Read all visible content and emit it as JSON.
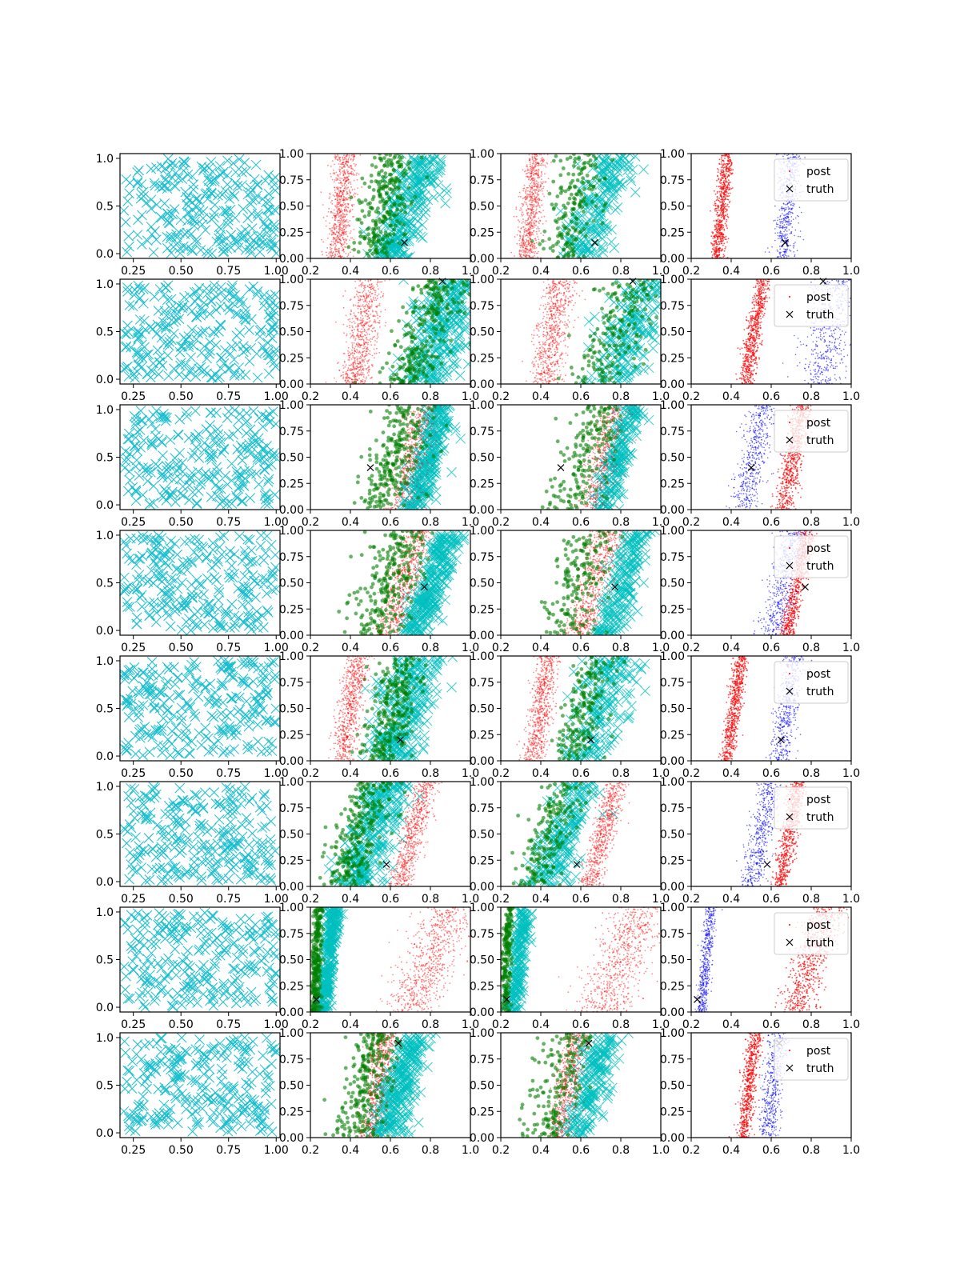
{
  "figure": {
    "colors": {
      "prior": "#17becf",
      "samples_red": "#ff0000",
      "samples_green": "#008000",
      "samples_cyan": "#00bfbf",
      "post_other": "#0000ff",
      "truth": "#000000"
    }
  },
  "legend": {
    "post_label": "post",
    "truth_label": "truth"
  },
  "chart_data": {
    "type": "scatter",
    "grid": false,
    "legend_location": "upper right of fourth column panels",
    "layout": "8 rows x 4 columns",
    "column1": {
      "xlim": [
        0.18,
        1.02
      ],
      "ylim": [
        -0.05,
        1.05
      ],
      "xticks": [
        0.25,
        0.5,
        0.75,
        1.0
      ],
      "xtick_labels": [
        "0.25",
        "0.50",
        "0.75",
        "1.00"
      ],
      "yticks": [
        0.0,
        0.5,
        1.0
      ],
      "ytick_labels": [
        "0.0",
        "0.5",
        "1.0"
      ]
    },
    "columns2to4": {
      "xlim": [
        0.2,
        1.0
      ],
      "ylim": [
        0.0,
        1.0
      ],
      "xticks": [
        0.2,
        0.4,
        0.6,
        0.8,
        1.0
      ],
      "xtick_labels": [
        "0.2",
        "0.4",
        "0.6",
        "0.8",
        "1.0"
      ],
      "yticks": [
        0.0,
        0.25,
        0.5,
        0.75,
        1.0
      ],
      "ytick_labels": [
        "0.00",
        "0.25",
        "0.50",
        "0.75",
        "1.00"
      ]
    },
    "rows": [
      {
        "truth": [
          0.67,
          0.15
        ],
        "red_band": [
          0.33,
          0.38,
          0.05
        ],
        "green_band": [
          0.52,
          0.62,
          0.1
        ],
        "cyan_band": [
          0.6,
          0.78,
          0.1
        ],
        "post_red": [
          0.33,
          0.38,
          0.03
        ],
        "post_other": [
          0.66,
          0.7,
          0.05
        ],
        "post_other_color": "blue"
      },
      {
        "truth": [
          0.86,
          0.98
        ],
        "red_band": [
          0.42,
          0.5,
          0.07
        ],
        "green_band": [
          0.68,
          0.88,
          0.12
        ],
        "cyan_band": [
          0.78,
          0.92,
          0.12
        ],
        "post_red": [
          0.47,
          0.56,
          0.035
        ],
        "post_other": [
          0.85,
          0.92,
          0.1
        ],
        "post_other_color": "blue"
      },
      {
        "truth": [
          0.5,
          0.4
        ],
        "red_band": [
          0.66,
          0.78,
          0.07
        ],
        "green_band": [
          0.55,
          0.7,
          0.11
        ],
        "cyan_band": [
          0.72,
          0.86,
          0.06
        ],
        "post_red": [
          0.66,
          0.76,
          0.045
        ],
        "post_other": [
          0.46,
          0.56,
          0.06
        ],
        "post_other_color": "blue"
      },
      {
        "truth": [
          0.77,
          0.46
        ],
        "red_band": [
          0.6,
          0.74,
          0.07
        ],
        "green_band": [
          0.52,
          0.66,
          0.12
        ],
        "cyan_band": [
          0.72,
          0.9,
          0.07
        ],
        "post_red": [
          0.68,
          0.78,
          0.035
        ],
        "post_other": [
          0.6,
          0.72,
          0.06
        ],
        "post_other_color": "blue"
      },
      {
        "truth": [
          0.65,
          0.2
        ],
        "red_band": [
          0.36,
          0.44,
          0.05
        ],
        "green_band": [
          0.55,
          0.68,
          0.1
        ],
        "cyan_band": [
          0.62,
          0.76,
          0.12
        ],
        "post_red": [
          0.38,
          0.45,
          0.03
        ],
        "post_other": [
          0.64,
          0.72,
          0.05
        ],
        "post_other_color": "blue"
      },
      {
        "truth": [
          0.58,
          0.21
        ],
        "red_band": [
          0.64,
          0.78,
          0.05
        ],
        "green_band": [
          0.36,
          0.52,
          0.1
        ],
        "cyan_band": [
          0.42,
          0.6,
          0.1
        ],
        "post_red": [
          0.64,
          0.74,
          0.035
        ],
        "post_other": [
          0.5,
          0.6,
          0.05
        ],
        "post_other_color": "blue"
      },
      {
        "truth": [
          0.23,
          0.12
        ],
        "red_band": [
          0.7,
          0.9,
          0.12
        ],
        "green_band": [
          0.22,
          0.24,
          0.02
        ],
        "cyan_band": [
          0.26,
          0.32,
          0.03
        ],
        "post_red": [
          0.72,
          0.88,
          0.08
        ],
        "post_other": [
          0.25,
          0.3,
          0.025
        ],
        "post_other_color": "blue"
      },
      {
        "truth": [
          0.64,
          0.9
        ],
        "red_band": [
          0.5,
          0.58,
          0.06
        ],
        "green_band": [
          0.42,
          0.54,
          0.1
        ],
        "cyan_band": [
          0.58,
          0.72,
          0.08
        ],
        "post_red": [
          0.46,
          0.52,
          0.03
        ],
        "post_other": [
          0.58,
          0.64,
          0.04
        ],
        "post_other_color": "blue"
      }
    ]
  }
}
